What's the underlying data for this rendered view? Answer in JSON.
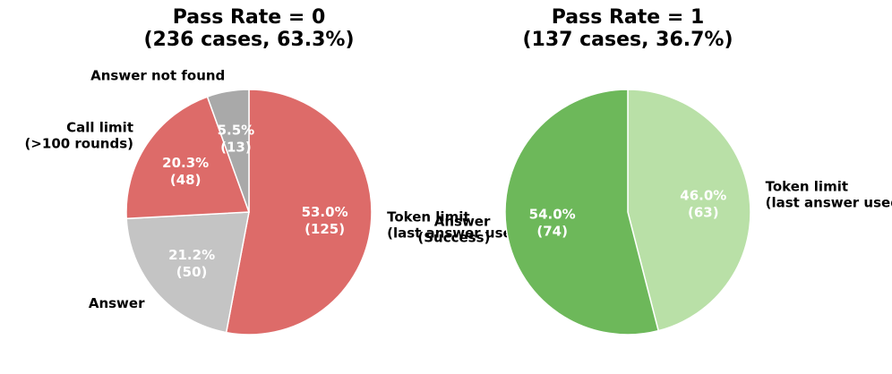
{
  "chart_data": [
    {
      "type": "pie",
      "title": [
        "Pass Rate = 0",
        "(236 cases, 63.3%)"
      ],
      "slices": [
        {
          "label": [
            "Token limit",
            "(last answer used)"
          ],
          "value": 125,
          "pct_label": "53.0%",
          "count_label": "(125)",
          "color": "#dd6b69"
        },
        {
          "label": [
            "Answer"
          ],
          "value": 50,
          "pct_label": "21.2%",
          "count_label": "(50)",
          "color": "#c4c4c4"
        },
        {
          "label": [
            "Call limit",
            "(>100 rounds)"
          ],
          "value": 48,
          "pct_label": "20.3%",
          "count_label": "(48)",
          "color": "#dd6b69"
        },
        {
          "label": [
            "Answer not found"
          ],
          "value": 13,
          "pct_label": "5.5%",
          "count_label": "(13)",
          "color": "#a9a9a9"
        }
      ]
    },
    {
      "type": "pie",
      "title": [
        "Pass Rate = 1",
        "(137 cases, 36.7%)"
      ],
      "slices": [
        {
          "label": [
            "Token limit",
            "(last answer used)"
          ],
          "value": 63,
          "pct_label": "46.0%",
          "count_label": "(63)",
          "color": "#b9e0a7"
        },
        {
          "label": [
            "Answer",
            "(Success)"
          ],
          "value": 74,
          "pct_label": "54.0%",
          "count_label": "(74)",
          "color": "#6db85a"
        }
      ]
    }
  ]
}
